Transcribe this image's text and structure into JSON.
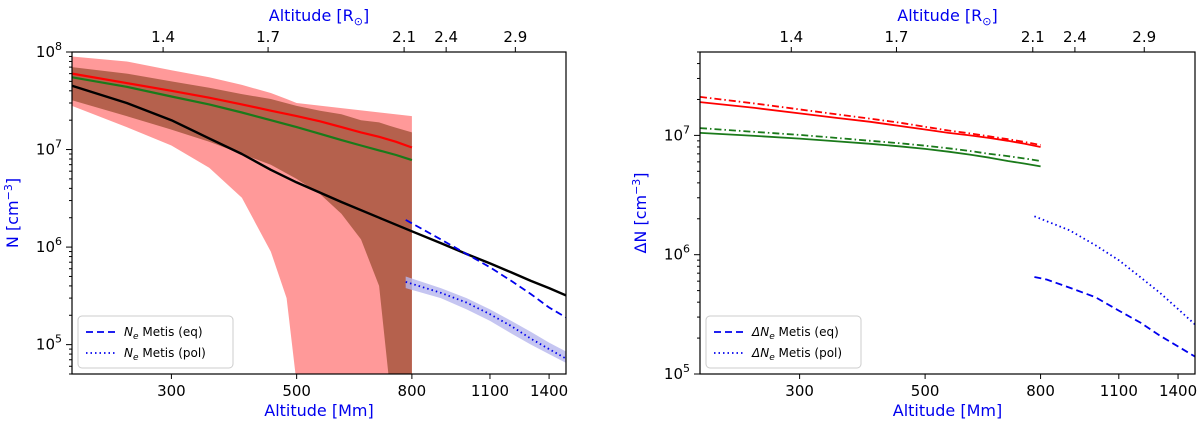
{
  "colors": {
    "red": "#ff0000",
    "red_band": "#ff7f7f",
    "green": "#1a7a1a",
    "brown_band": "#a2523a",
    "black": "#000000",
    "blue": "#0000ee",
    "blue_band": "#b7b7ee"
  },
  "chart_data": [
    {
      "type": "line",
      "panel": "left",
      "xscale": "log",
      "yscale": "log",
      "xlim": [
        200,
        1500
      ],
      "ylim": [
        50000,
        100000000
      ],
      "xlabel": "Altitude [Mm]",
      "ylabel": "N [cm$^{-3}$]",
      "ylabel_main": "N [cm",
      "ylabel_exp": "−3",
      "ylabel_close": "]",
      "top_xlabel_main": "Altitude [R",
      "top_xlabel_sub": "⊙",
      "top_xlabel_close": "]",
      "x_ticks": [
        {
          "value": 300,
          "label": "300"
        },
        {
          "value": 500,
          "label": "500"
        },
        {
          "value": 800,
          "label": "800"
        },
        {
          "value": 1100,
          "label": "1100"
        },
        {
          "value": 1400,
          "label": "1400"
        }
      ],
      "top_ticks": [
        {
          "value": 1.4,
          "label": "1.4"
        },
        {
          "value": 1.7,
          "label": "1.7"
        },
        {
          "value": 2.1,
          "label": "2.1"
        },
        {
          "value": 2.4,
          "label": "2.4"
        },
        {
          "value": 2.9,
          "label": "2.9"
        }
      ],
      "y_ticks": [
        {
          "value": 100000,
          "base": "10",
          "exp": "5"
        },
        {
          "value": 1000000,
          "base": "10",
          "exp": "6"
        },
        {
          "value": 10000000,
          "base": "10",
          "exp": "7"
        },
        {
          "value": 100000000,
          "base": "10",
          "exp": "8"
        }
      ],
      "bands": [
        {
          "name": "red uncertainty band",
          "color": "red_band",
          "opacity": 0.8,
          "x": [
            200,
            250,
            300,
            350,
            400,
            450,
            480,
            500,
            800
          ],
          "upper": [
            90000000,
            80000000,
            65000000,
            55000000,
            46000000,
            38000000,
            33000000,
            30000000,
            22000000
          ],
          "lower": [
            28000000,
            17000000,
            11000000,
            6500000,
            3200000,
            900000,
            300000,
            40000,
            40000
          ]
        },
        {
          "name": "brown uncertainty band",
          "color": "brown_band",
          "opacity": 0.8,
          "x": [
            200,
            250,
            300,
            350,
            400,
            450,
            500,
            550,
            600,
            650,
            700,
            730,
            800
          ],
          "upper": [
            70000000,
            60000000,
            50000000,
            43000000,
            37000000,
            33000000,
            28000000,
            25000000,
            23000000,
            20000000,
            19000000,
            17500000,
            15000000
          ],
          "lower": [
            32000000,
            22000000,
            16000000,
            12000000,
            9000000,
            7000000,
            5000000,
            3500000,
            2200000,
            1200000,
            400000,
            40000,
            40000
          ]
        },
        {
          "name": "blue uncertainty band",
          "color": "blue_band",
          "opacity": 0.8,
          "x": [
            780,
            900,
            1000,
            1100,
            1200,
            1300,
            1400,
            1500
          ],
          "upper": [
            500000,
            380000,
            300000,
            230000,
            175000,
            135000,
            105000,
            85000
          ],
          "lower": [
            380000,
            300000,
            230000,
            175000,
            130000,
            100000,
            80000,
            65000
          ]
        }
      ],
      "series": [
        {
          "name": "red density",
          "color": "red",
          "style": "solid",
          "width": 2.2,
          "x": [
            200,
            250,
            300,
            350,
            400,
            450,
            500,
            550,
            600,
            650,
            700,
            750,
            800
          ],
          "y": [
            60000000,
            48000000,
            40000000,
            34000000,
            29000000,
            25000000,
            22000000,
            19500000,
            17000000,
            15000000,
            13500000,
            12000000,
            10500000
          ]
        },
        {
          "name": "green density",
          "color": "green",
          "style": "solid",
          "width": 2.2,
          "x": [
            200,
            250,
            300,
            350,
            400,
            450,
            500,
            550,
            600,
            650,
            700,
            750,
            800
          ],
          "y": [
            55000000,
            44000000,
            35000000,
            29000000,
            24000000,
            20000000,
            17000000,
            14500000,
            12500000,
            11000000,
            9800000,
            8800000,
            7800000
          ]
        },
        {
          "name": "black model",
          "color": "black",
          "style": "solid",
          "width": 2.4,
          "x": [
            200,
            250,
            300,
            350,
            400,
            450,
            500,
            600,
            700,
            800,
            900,
            1000,
            1100,
            1200,
            1300,
            1400,
            1500
          ],
          "y": [
            45000000,
            30000000,
            20000000,
            13000000,
            9000000,
            6200000,
            4600000,
            2900000,
            2000000,
            1450000,
            1100000,
            850000,
            680000,
            550000,
            450000,
            380000,
            320000
          ]
        },
        {
          "name": "N_e Metis (eq)",
          "color": "blue",
          "style": "dash",
          "width": 1.8,
          "x": [
            780,
            900,
            1000,
            1100,
            1200,
            1300,
            1400,
            1500
          ],
          "y": [
            1900000,
            1200000,
            850000,
            620000,
            450000,
            330000,
            240000,
            190000
          ]
        },
        {
          "name": "N_e Metis (pol)",
          "color": "blue",
          "style": "dot",
          "width": 1.8,
          "x": [
            780,
            900,
            1000,
            1100,
            1200,
            1300,
            1400,
            1500
          ],
          "y": [
            440000,
            340000,
            270000,
            205000,
            155000,
            115000,
            90000,
            72000
          ]
        }
      ],
      "legend": {
        "position": "lower-left",
        "entries": [
          {
            "style": "dash",
            "base": "N",
            "sub": "e",
            "rest": " Metis (eq)"
          },
          {
            "style": "dot",
            "base": "N",
            "sub": "e",
            "rest": " Metis (pol)"
          }
        ]
      }
    },
    {
      "type": "line",
      "panel": "right",
      "xscale": "log",
      "yscale": "log",
      "xlim": [
        200,
        1500
      ],
      "ylim": [
        100000,
        50000000
      ],
      "xlabel": "Altitude [Mm]",
      "ylabel": "ΔN [cm$^{-3}$]",
      "ylabel_main": "ΔN [cm",
      "ylabel_exp": "−3",
      "ylabel_close": "]",
      "top_xlabel_main": "Altitude [R",
      "top_xlabel_sub": "⊙",
      "top_xlabel_close": "]",
      "x_ticks": [
        {
          "value": 300,
          "label": "300"
        },
        {
          "value": 500,
          "label": "500"
        },
        {
          "value": 800,
          "label": "800"
        },
        {
          "value": 1100,
          "label": "1100"
        },
        {
          "value": 1400,
          "label": "1400"
        }
      ],
      "top_ticks": [
        {
          "value": 1.4,
          "label": "1.4"
        },
        {
          "value": 1.7,
          "label": "1.7"
        },
        {
          "value": 2.1,
          "label": "2.1"
        },
        {
          "value": 2.4,
          "label": "2.4"
        },
        {
          "value": 2.9,
          "label": "2.9"
        }
      ],
      "y_ticks": [
        {
          "value": 100000,
          "base": "10",
          "exp": "5"
        },
        {
          "value": 1000000,
          "base": "10",
          "exp": "6"
        },
        {
          "value": 10000000,
          "base": "10",
          "exp": "7"
        }
      ],
      "bands": [],
      "series": [
        {
          "name": "ΔN red solid",
          "color": "red",
          "style": "solid",
          "width": 1.8,
          "x": [
            200,
            250,
            300,
            350,
            400,
            450,
            500,
            550,
            600,
            650,
            700,
            750,
            800
          ],
          "y": [
            19000000,
            17000000,
            15300000,
            14000000,
            13000000,
            12000000,
            11200000,
            10500000,
            10000000,
            9500000,
            9000000,
            8500000,
            8000000
          ]
        },
        {
          "name": "ΔN red dashed",
          "color": "red",
          "style": "dashdot",
          "width": 1.8,
          "x": [
            200,
            250,
            300,
            350,
            400,
            450,
            500,
            550,
            600,
            650,
            700,
            750,
            800
          ],
          "y": [
            21000000,
            18500000,
            16500000,
            15000000,
            13800000,
            12800000,
            11800000,
            11000000,
            10400000,
            9800000,
            9300000,
            8800000,
            8300000
          ]
        },
        {
          "name": "ΔN green solid",
          "color": "green",
          "style": "solid",
          "width": 1.8,
          "x": [
            200,
            250,
            300,
            350,
            400,
            450,
            500,
            550,
            600,
            650,
            700,
            750,
            800
          ],
          "y": [
            10500000,
            9900000,
            9400000,
            8900000,
            8500000,
            8100000,
            7700000,
            7300000,
            6900000,
            6500000,
            6100000,
            5800000,
            5500000
          ]
        },
        {
          "name": "ΔN green dashed",
          "color": "green",
          "style": "dashdot",
          "width": 1.8,
          "x": [
            200,
            250,
            300,
            350,
            400,
            450,
            500,
            550,
            600,
            650,
            700,
            750,
            800
          ],
          "y": [
            11500000,
            10700000,
            10100000,
            9500000,
            9000000,
            8600000,
            8200000,
            7800000,
            7400000,
            7000000,
            6700000,
            6400000,
            6100000
          ]
        },
        {
          "name": "ΔN_e Metis (eq)",
          "color": "blue",
          "style": "dash",
          "width": 1.8,
          "x": [
            780,
            820,
            900,
            1000,
            1100,
            1200,
            1300,
            1400,
            1500
          ],
          "y": [
            650000,
            620000,
            530000,
            440000,
            340000,
            270000,
            210000,
            170000,
            140000
          ]
        },
        {
          "name": "ΔN_e Metis (pol)",
          "color": "blue",
          "style": "dot",
          "width": 1.8,
          "x": [
            780,
            900,
            1000,
            1100,
            1200,
            1300,
            1400,
            1500
          ],
          "y": [
            2100000,
            1600000,
            1200000,
            900000,
            650000,
            480000,
            350000,
            260000
          ]
        }
      ],
      "legend": {
        "position": "lower-left",
        "entries": [
          {
            "style": "dash",
            "base": "ΔN",
            "sub": "e",
            "rest": " Metis (eq)"
          },
          {
            "style": "dot",
            "base": "ΔN",
            "sub": "e",
            "rest": " Metis (pol)"
          }
        ]
      }
    }
  ]
}
